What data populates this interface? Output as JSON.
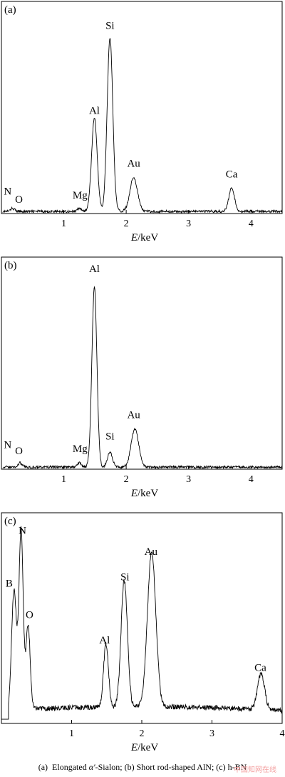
{
  "chart_data": [
    {
      "type": "line",
      "panel_label": "(a)",
      "xlabel": "E/keV",
      "xlabel_parts": {
        "var": "E",
        "unit": "/keV"
      },
      "xlim": [
        0,
        4.5
      ],
      "ylim": [
        0,
        1
      ],
      "xticks": [
        1,
        2,
        3,
        4
      ],
      "annotations": [
        {
          "text": "N",
          "x": 0.1,
          "y": 0.09
        },
        {
          "text": "O",
          "x": 0.28,
          "y": 0.05
        },
        {
          "text": "Mg",
          "x": 1.26,
          "y": 0.07
        },
        {
          "text": "Al",
          "x": 1.49,
          "y": 0.47
        },
        {
          "text": "Si",
          "x": 1.74,
          "y": 0.87
        },
        {
          "text": "Au",
          "x": 2.12,
          "y": 0.22
        },
        {
          "text": "Ca",
          "x": 3.69,
          "y": 0.17
        }
      ],
      "spectrum": {
        "baseline": 0.01,
        "noise": 0.006,
        "peaks": [
          {
            "center": 0.18,
            "height": 0.015,
            "width": 0.03
          },
          {
            "center": 1.25,
            "height": 0.015,
            "width": 0.03
          },
          {
            "center": 1.49,
            "height": 0.44,
            "width": 0.045
          },
          {
            "center": 1.74,
            "height": 0.82,
            "width": 0.045
          },
          {
            "center": 2.12,
            "height": 0.16,
            "width": 0.06
          },
          {
            "center": 3.69,
            "height": 0.11,
            "width": 0.045
          }
        ]
      }
    },
    {
      "type": "line",
      "panel_label": "(b)",
      "xlabel": "E/keV",
      "xlabel_parts": {
        "var": "E",
        "unit": "/keV"
      },
      "xlim": [
        0,
        4.5
      ],
      "ylim": [
        0,
        1
      ],
      "xticks": [
        1,
        2,
        3,
        4
      ],
      "annotations": [
        {
          "text": "N",
          "x": 0.1,
          "y": 0.1
        },
        {
          "text": "O",
          "x": 0.28,
          "y": 0.07
        },
        {
          "text": "Mg",
          "x": 1.26,
          "y": 0.08
        },
        {
          "text": "Al",
          "x": 1.49,
          "y": 0.93
        },
        {
          "text": "Si",
          "x": 1.74,
          "y": 0.14
        },
        {
          "text": "Au",
          "x": 2.12,
          "y": 0.24
        }
      ],
      "spectrum": {
        "baseline": 0.01,
        "noise": 0.006,
        "peaks": [
          {
            "center": 0.3,
            "height": 0.02,
            "width": 0.03
          },
          {
            "center": 1.25,
            "height": 0.02,
            "width": 0.03
          },
          {
            "center": 1.49,
            "height": 0.85,
            "width": 0.04
          },
          {
            "center": 1.74,
            "height": 0.07,
            "width": 0.04
          },
          {
            "center": 2.14,
            "height": 0.18,
            "width": 0.06
          }
        ]
      }
    },
    {
      "type": "line",
      "panel_label": "(c)",
      "xlabel": "E/keV",
      "xlabel_parts": {
        "var": "E",
        "unit": "/keV"
      },
      "xlim": [
        0,
        4
      ],
      "ylim": [
        0,
        1
      ],
      "xticks": [
        1,
        2,
        3,
        4
      ],
      "annotations": [
        {
          "text": "B",
          "x": 0.11,
          "y": 0.65
        },
        {
          "text": "N",
          "x": 0.3,
          "y": 0.9
        },
        {
          "text": "O",
          "x": 0.4,
          "y": 0.5
        },
        {
          "text": "Al",
          "x": 1.47,
          "y": 0.38
        },
        {
          "text": "Si",
          "x": 1.76,
          "y": 0.68
        },
        {
          "text": "Au",
          "x": 2.13,
          "y": 0.8
        },
        {
          "text": "Ca",
          "x": 3.69,
          "y": 0.25
        }
      ],
      "spectrum": {
        "baseline": 0.06,
        "noise": 0.012,
        "peaks": [
          {
            "center": 0.18,
            "height": 0.57,
            "width": 0.035
          },
          {
            "center": 0.28,
            "height": 0.85,
            "width": 0.03
          },
          {
            "center": 0.38,
            "height": 0.4,
            "width": 0.03
          },
          {
            "center": 1.49,
            "height": 0.3,
            "width": 0.035
          },
          {
            "center": 1.75,
            "height": 0.6,
            "width": 0.045
          },
          {
            "center": 2.14,
            "height": 0.73,
            "width": 0.06
          },
          {
            "center": 3.7,
            "height": 0.17,
            "width": 0.05
          }
        ]
      }
    }
  ],
  "caption": {
    "a_label": "(a)",
    "a_pre": "Elongated ",
    "a_alpha": "α′",
    "a_post": "-Sialon; (b) Short rod-shaped AlN; (c) h-BN"
  },
  "watermark": "中国知网在线"
}
